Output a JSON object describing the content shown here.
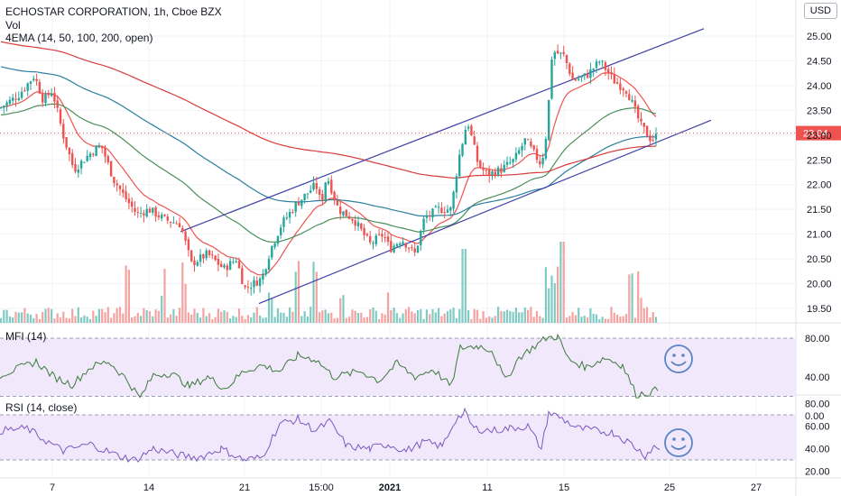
{
  "header": {
    "title": "ECHOSTAR CORPORATION, 1h, Cboe BZX",
    "vol_label": "Vol",
    "ema_label": "4EMA (14, 50, 100, 200, open)",
    "currency": "USD",
    "mfi_label": "MFI (14)",
    "rsi_label": "RSI (14, close)"
  },
  "colors": {
    "up": "#26a69a",
    "down": "#ef5350",
    "channel": "#3d3fa6",
    "ema14": "#ef5350",
    "ema50": "#4a8f5a",
    "ema100": "#2a7f9e",
    "ema200": "#d83a3a",
    "indicator_line": "#7e57c2",
    "mfi_line": "#3a7a3a",
    "band": "#f1e8fb",
    "smiley": "#5a83c8"
  },
  "icons": [
    "smiley-icon",
    "smiley-icon"
  ],
  "chart_data": [
    {
      "type": "candlestick",
      "name_in_title": "ECHOSTAR CORPORATION",
      "interval": "1h",
      "exchange": "Cboe BZX",
      "last_price": "23.04",
      "ylim": [
        19.2,
        25.3
      ],
      "y_ticks": [
        "25.00",
        "24.50",
        "24.00",
        "23.50",
        "23.00",
        "22.50",
        "22.00",
        "21.50",
        "21.00",
        "20.50",
        "20.00",
        "19.50"
      ],
      "x_ticks": [
        "7",
        "14",
        "21",
        "15:00",
        "2021",
        "11",
        "15",
        "25",
        "27"
      ],
      "close_anchors": [
        {
          "x": "7",
          "y": 23.9
        },
        {
          "x": "14",
          "y": 21.5
        },
        {
          "x": "21",
          "y": 19.9
        },
        {
          "x": "15:00",
          "y": 21.6
        },
        {
          "x": "2021",
          "y": 20.7
        },
        {
          "x": "11",
          "y": 22.2
        },
        {
          "x": "15",
          "y": 24.6
        },
        {
          "x": "25",
          "y": 23.04
        }
      ],
      "channel": {
        "upper": [
          [
            21.05,
            25.15
          ]
        ],
        "lower": [
          [
            19.6,
            23.3
          ]
        ]
      }
    },
    {
      "type": "line",
      "title": "MFI (14)",
      "ylim": [
        0,
        90
      ],
      "y_ticks": [
        "80.00",
        "40.00",
        "0.00"
      ],
      "band": [
        20,
        80
      ]
    },
    {
      "type": "line",
      "title": "RSI (14, close)",
      "ylim": [
        17,
        85
      ],
      "y_ticks": [
        "80.00",
        "60.00",
        "40.00",
        "20.00"
      ],
      "band": [
        30,
        70
      ]
    }
  ]
}
